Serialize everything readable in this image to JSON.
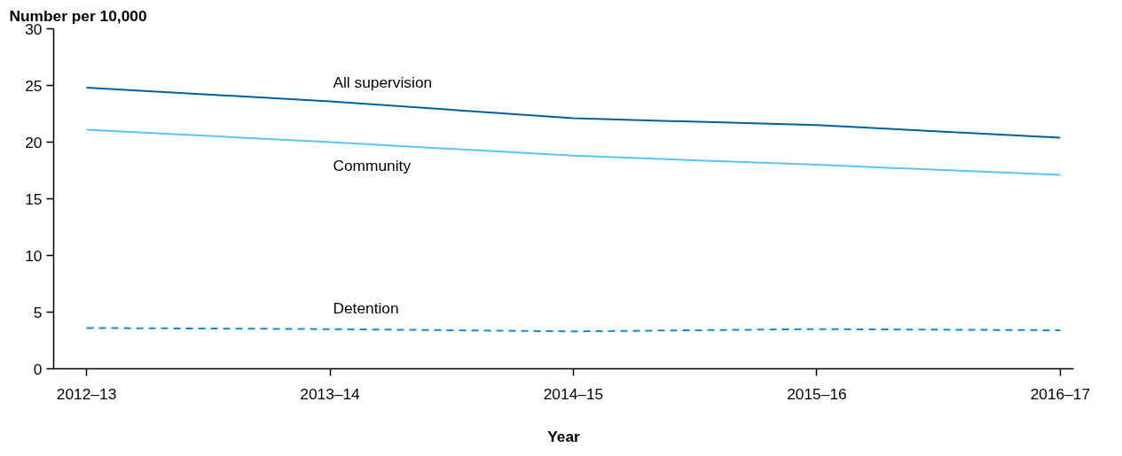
{
  "chart_data": {
    "type": "line",
    "ylabel": "Number per 10,000",
    "xlabel": "Year",
    "categories": [
      "2012–13",
      "2013–14",
      "2014–15",
      "2015–16",
      "2016–17"
    ],
    "series": [
      {
        "name": "All supervision",
        "color": "#00629b",
        "values": [
          24.8,
          23.6,
          22.1,
          21.5,
          20.4
        ]
      },
      {
        "name": "Community",
        "color": "#5bc4f5",
        "values": [
          21.1,
          20.0,
          18.8,
          18.0,
          17.1
        ]
      },
      {
        "name": "Detention",
        "color": "#0a8fd8",
        "line_style": "dashed",
        "values": [
          3.6,
          3.5,
          3.3,
          3.5,
          3.4
        ]
      }
    ],
    "ylim": [
      0,
      30
    ],
    "yticks": [
      0,
      5,
      10,
      15,
      20,
      25,
      30
    ],
    "grid": false
  }
}
